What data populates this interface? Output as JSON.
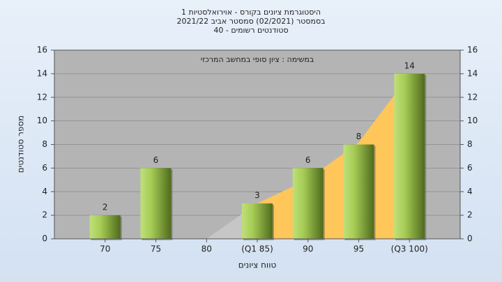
{
  "chart_data": {
    "type": "bar",
    "title_lines": [
      "היסטוגרמת ציונים בקורס - אוירואלסטיות 1",
      "בסמסטר  (02/2021)  סמסטר אביב 2021/22",
      "סטודנטים רשומים - 40"
    ],
    "annotation": "במשימה : ציון סופי במחשב המרכזי",
    "x_label": "טווח ציונים",
    "y_label": "מספר סטודנטים",
    "categories": [
      "70",
      "75",
      "80",
      "(Q1 85)",
      "90",
      "95",
      "(Q3 100)"
    ],
    "values": [
      2,
      6,
      0,
      3,
      6,
      8,
      14
    ],
    "ylim": [
      0,
      16
    ],
    "yticks": [
      0,
      2,
      4,
      6,
      8,
      10,
      12,
      14,
      16
    ],
    "y2lim": [
      0,
      16
    ],
    "y2ticks": [
      0,
      2,
      4,
      6,
      8,
      10,
      12,
      14,
      16
    ],
    "grid": true
  }
}
